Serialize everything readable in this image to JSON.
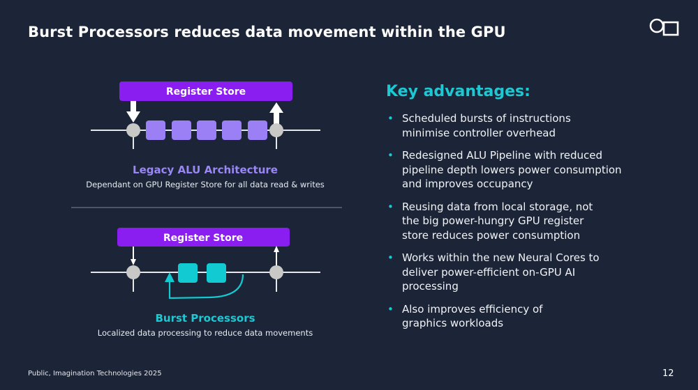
{
  "title": "Burst Processors reduces data movement within the GPU",
  "logo": {
    "name": "imagination-logo-icon"
  },
  "colors": {
    "background": "#1c2537",
    "register_store": "#8a1ef0",
    "legacy_alu": "#9a86f5",
    "burst": "#1ec8d2",
    "node": "#c8c9c6"
  },
  "legacy": {
    "register_store_label": "Register Store",
    "title": "Legacy ALU Architecture",
    "subtitle": "Dependant on GPU Register Store for all data read & writes"
  },
  "burst": {
    "register_store_label": "Register Store",
    "title": "Burst Processors",
    "subtitle": "Localized data processing to reduce data movements"
  },
  "advantages": {
    "title": "Key advantages:",
    "bullet": "•",
    "items": [
      "Scheduled bursts of instructions minimise controller overhead",
      "Redesigned ALU Pipeline with reduced pipeline depth lowers power consumption and improves occupancy",
      "Reusing data from local storage, not the big power-hungry GPU register store reduces power consumption",
      "Works within the new Neural Cores to deliver power-efficient on-GPU AI processing",
      "Also improves efficiency of graphics workloads"
    ]
  },
  "footer": "Public, Imagination Technologies 2025",
  "page_number": "12"
}
